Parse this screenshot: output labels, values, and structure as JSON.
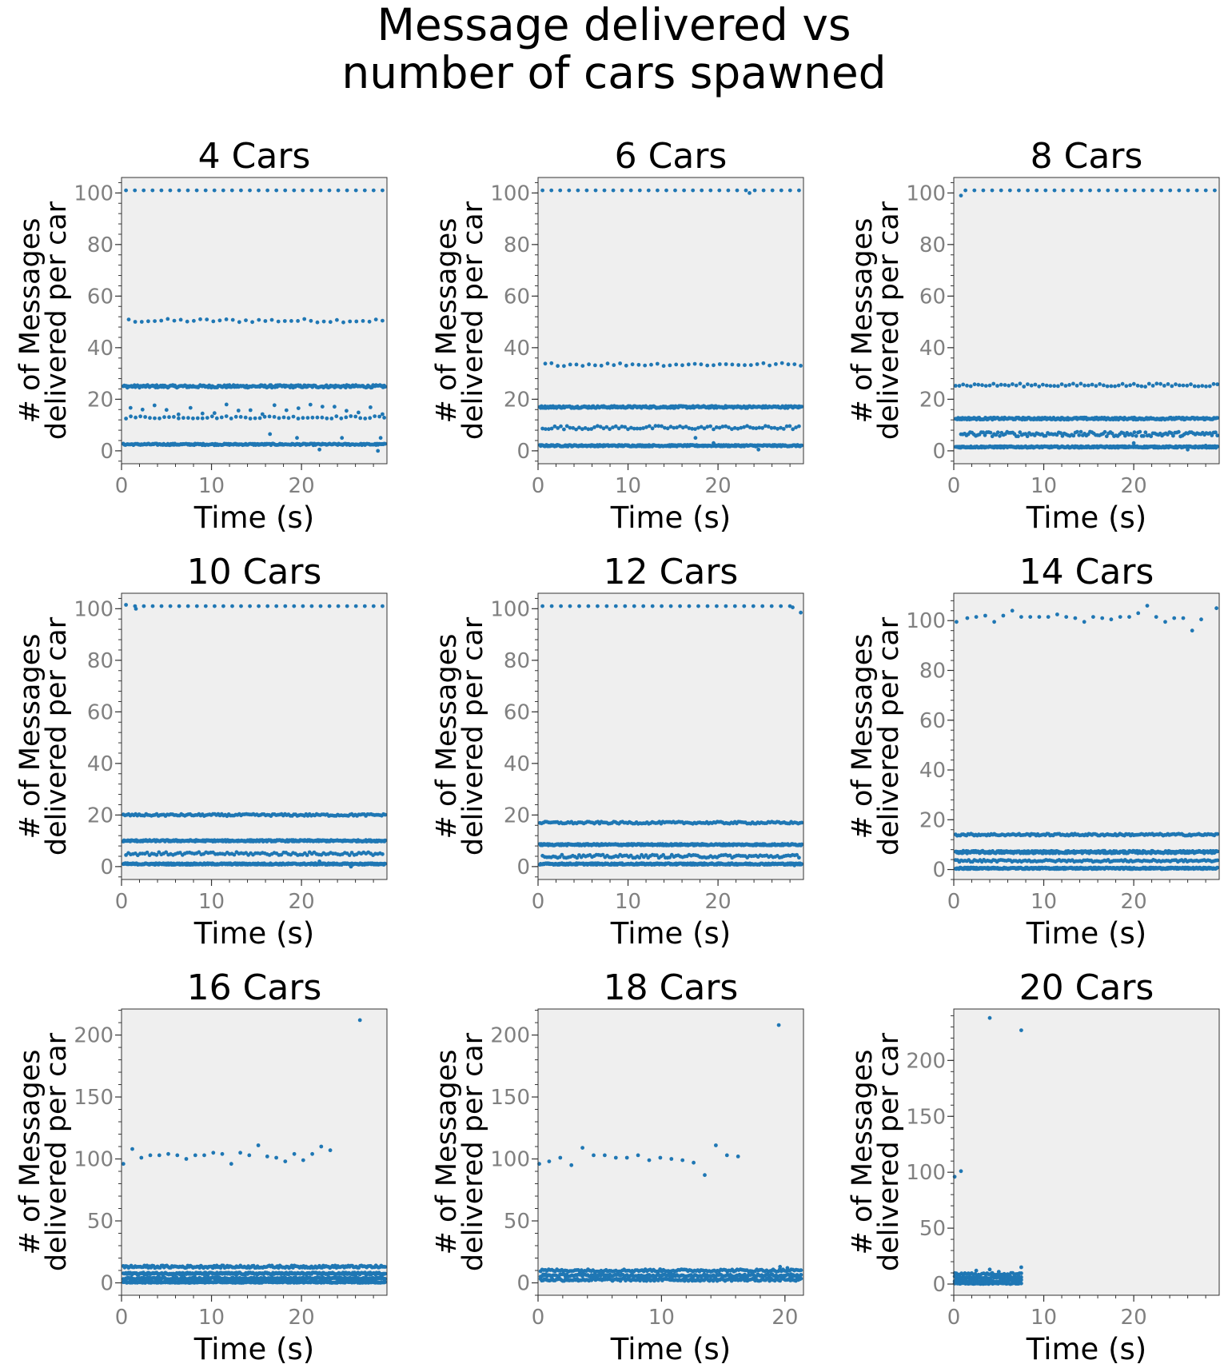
{
  "figure": {
    "title_lines": [
      "Message delivered vs",
      "number of cars spawned"
    ]
  },
  "colors": {
    "marker": "#1f77b4",
    "panel_bg": "#efefef",
    "tick_label": "#808080",
    "text": "#000000"
  },
  "chart_data": [
    {
      "type": "scatter",
      "title": "4 Cars",
      "xlabel": "Time (s)",
      "ylabel": [
        "# of Messages",
        "delivered per car"
      ],
      "xlim": [
        0,
        29.5
      ],
      "ylim": [
        -5,
        106
      ],
      "xticks": [
        0,
        10,
        20
      ],
      "yticks": [
        0,
        20,
        40,
        60,
        80,
        100
      ],
      "bands": [
        {
          "y": 101,
          "start": 0.5,
          "end": 29,
          "count": 30,
          "jitter": 0
        },
        {
          "y": 50.5,
          "start": 0.8,
          "end": 29,
          "count": 40,
          "jitter": 0.7
        },
        {
          "y": 25,
          "start": 0.2,
          "end": 29.3,
          "count": 260,
          "jitter": 0.5
        },
        {
          "y": 16,
          "start": 1,
          "end": 29,
          "count": 22,
          "jitter": 2
        },
        {
          "y": 13,
          "start": 0.5,
          "end": 29.2,
          "count": 55,
          "jitter": 0.5
        },
        {
          "y": 2.5,
          "start": 0.2,
          "end": 29.3,
          "count": 260,
          "jitter": 0.3
        }
      ],
      "points": [
        [
          16.5,
          6.5
        ],
        [
          19.5,
          5
        ],
        [
          22,
          0.5
        ],
        [
          24.5,
          5
        ],
        [
          28.5,
          0
        ],
        [
          28.8,
          5
        ]
      ]
    },
    {
      "type": "scatter",
      "title": "6 Cars",
      "xlabel": "Time (s)",
      "ylabel": [
        "# of Messages",
        "delivered per car"
      ],
      "xlim": [
        0,
        29.5
      ],
      "ylim": [
        -5,
        106
      ],
      "xticks": [
        0,
        10,
        20
      ],
      "yticks": [
        0,
        20,
        40,
        60,
        80,
        100
      ],
      "bands": [
        {
          "y": 101,
          "start": 0.5,
          "end": 29,
          "count": 30,
          "jitter": 0
        },
        {
          "y": 33.5,
          "start": 0.8,
          "end": 29.2,
          "count": 42,
          "jitter": 0.6
        },
        {
          "y": 17,
          "start": 0.2,
          "end": 29.3,
          "count": 300,
          "jitter": 0.4
        },
        {
          "y": 9,
          "start": 0.5,
          "end": 29,
          "count": 85,
          "jitter": 0.7
        },
        {
          "y": 2,
          "start": 0.2,
          "end": 29.3,
          "count": 320,
          "jitter": 0.3
        }
      ],
      "points": [
        [
          23.5,
          100
        ],
        [
          17.5,
          5
        ],
        [
          19.5,
          3
        ],
        [
          24.5,
          0.5
        ]
      ]
    },
    {
      "type": "scatter",
      "title": "8 Cars",
      "xlabel": "Time (s)",
      "ylabel": [
        "# of Messages",
        "delivered per car"
      ],
      "xlim": [
        0,
        29.5
      ],
      "ylim": [
        -5,
        106
      ],
      "xticks": [
        0,
        10,
        20
      ],
      "yticks": [
        0,
        20,
        40,
        60,
        80,
        100
      ],
      "bands": [
        {
          "y": 101,
          "start": 1.3,
          "end": 29,
          "count": 29,
          "jitter": 0
        },
        {
          "y": 25.5,
          "start": 0.2,
          "end": 29.3,
          "count": 70,
          "jitter": 0.6
        },
        {
          "y": 12.5,
          "start": 0.2,
          "end": 29.3,
          "count": 300,
          "jitter": 0.4
        },
        {
          "y": 6.5,
          "start": 0.8,
          "end": 29.3,
          "count": 140,
          "jitter": 0.9
        },
        {
          "y": 1.5,
          "start": 0.2,
          "end": 29.3,
          "count": 360,
          "jitter": 0.3
        }
      ],
      "points": [
        [
          0.8,
          99
        ],
        [
          20,
          3
        ],
        [
          26,
          0.5
        ],
        [
          28,
          2
        ]
      ]
    },
    {
      "type": "scatter",
      "title": "10 Cars",
      "xlabel": "Time (s)",
      "ylabel": [
        "# of Messages",
        "delivered per car"
      ],
      "xlim": [
        0,
        29.5
      ],
      "ylim": [
        -5,
        106
      ],
      "xticks": [
        0,
        10,
        20
      ],
      "yticks": [
        0,
        20,
        40,
        60,
        80,
        100
      ],
      "bands": [
        {
          "y": 101,
          "start": 1.5,
          "end": 29,
          "count": 29,
          "jitter": 0
        },
        {
          "y": 20,
          "start": 0.2,
          "end": 29.3,
          "count": 150,
          "jitter": 0.4
        },
        {
          "y": 10,
          "start": 0.2,
          "end": 29.3,
          "count": 340,
          "jitter": 0.3
        },
        {
          "y": 5,
          "start": 0.5,
          "end": 29,
          "count": 110,
          "jitter": 0.6
        },
        {
          "y": 1,
          "start": 0.2,
          "end": 29.3,
          "count": 380,
          "jitter": 0.3
        }
      ],
      "points": [
        [
          0.5,
          101.5
        ],
        [
          1.6,
          100
        ],
        [
          22,
          2
        ],
        [
          25.5,
          0
        ]
      ]
    },
    {
      "type": "scatter",
      "title": "12 Cars",
      "xlabel": "Time (s)",
      "ylabel": [
        "# of Messages",
        "delivered per car"
      ],
      "xlim": [
        0,
        29.5
      ],
      "ylim": [
        -5,
        106
      ],
      "xticks": [
        0,
        10,
        20
      ],
      "yticks": [
        0,
        20,
        40,
        60,
        80,
        100
      ],
      "bands": [
        {
          "y": 101,
          "start": 0.5,
          "end": 28,
          "count": 28,
          "jitter": 0
        },
        {
          "y": 17,
          "start": 0.2,
          "end": 29.3,
          "count": 150,
          "jitter": 0.4
        },
        {
          "y": 8.5,
          "start": 0.2,
          "end": 29.3,
          "count": 340,
          "jitter": 0.3
        },
        {
          "y": 4,
          "start": 0.5,
          "end": 29,
          "count": 120,
          "jitter": 0.6
        },
        {
          "y": 1,
          "start": 0.2,
          "end": 29.3,
          "count": 380,
          "jitter": 0.3
        }
      ],
      "points": [
        [
          28.3,
          100.5
        ],
        [
          29.2,
          98.5
        ],
        [
          28.5,
          0.5
        ]
      ]
    },
    {
      "type": "scatter",
      "title": "14 Cars",
      "xlabel": "Time (s)",
      "ylabel": [
        "# of Messages",
        "delivered per car"
      ],
      "xlim": [
        0,
        29.5
      ],
      "ylim": [
        -4,
        111
      ],
      "xticks": [
        0,
        10,
        20
      ],
      "yticks": [
        0,
        20,
        40,
        60,
        80,
        100
      ],
      "bands": [
        {
          "y": 14,
          "start": 0.2,
          "end": 29.3,
          "count": 170,
          "jitter": 0.4
        },
        {
          "y": 7,
          "start": 0.2,
          "end": 29.3,
          "count": 340,
          "jitter": 0.5
        },
        {
          "y": 3.5,
          "start": 0.2,
          "end": 29.3,
          "count": 140,
          "jitter": 0.4
        },
        {
          "y": 0.5,
          "start": 0.2,
          "end": 29.3,
          "count": 400,
          "jitter": 0.3
        }
      ],
      "points": [
        [
          0.3,
          99.5
        ],
        [
          1.5,
          101
        ],
        [
          2.5,
          101.5
        ],
        [
          3.5,
          102
        ],
        [
          4.5,
          99.5
        ],
        [
          5.5,
          102
        ],
        [
          6.5,
          104
        ],
        [
          7.5,
          101.5
        ],
        [
          8.5,
          101.5
        ],
        [
          9.5,
          101.5
        ],
        [
          10.5,
          101.5
        ],
        [
          11.5,
          102.5
        ],
        [
          12.5,
          101.5
        ],
        [
          13.5,
          101
        ],
        [
          14.5,
          99.5
        ],
        [
          15.5,
          101.5
        ],
        [
          16.5,
          101
        ],
        [
          17.5,
          100.5
        ],
        [
          18.5,
          101.5
        ],
        [
          19.5,
          101.5
        ],
        [
          20.5,
          103
        ],
        [
          21.5,
          106
        ],
        [
          22.5,
          101.5
        ],
        [
          23.5,
          99.5
        ],
        [
          24.5,
          101
        ],
        [
          25.5,
          101
        ],
        [
          26.5,
          96
        ],
        [
          27.5,
          100.5
        ],
        [
          29.2,
          105
        ]
      ]
    },
    {
      "type": "scatter",
      "title": "16 Cars",
      "xlabel": "Time (s)",
      "ylabel": [
        "# of Messages",
        "delivered per car"
      ],
      "xlim": [
        0,
        29.5
      ],
      "ylim": [
        -10,
        221
      ],
      "xticks": [
        0,
        10,
        20
      ],
      "yticks": [
        0,
        50,
        100,
        150,
        200
      ],
      "bands": [
        {
          "y": 13,
          "start": 0.2,
          "end": 29.3,
          "count": 200,
          "jitter": 1
        },
        {
          "y": 7.5,
          "start": 0.2,
          "end": 29.3,
          "count": 300,
          "jitter": 0.8
        },
        {
          "y": 3.5,
          "start": 0.2,
          "end": 29.3,
          "count": 300,
          "jitter": 0.8
        },
        {
          "y": 0.5,
          "start": 0.2,
          "end": 29.3,
          "count": 300,
          "jitter": 0.5
        }
      ],
      "points": [
        [
          0.2,
          96
        ],
        [
          1.2,
          108
        ],
        [
          2.2,
          101
        ],
        [
          3.2,
          103
        ],
        [
          4.2,
          103
        ],
        [
          5.2,
          104
        ],
        [
          6.2,
          103
        ],
        [
          7.2,
          100
        ],
        [
          8.2,
          103
        ],
        [
          9.2,
          103
        ],
        [
          10.2,
          105
        ],
        [
          11.2,
          104
        ],
        [
          12.2,
          96
        ],
        [
          13.2,
          105
        ],
        [
          14.2,
          103
        ],
        [
          15.2,
          111
        ],
        [
          16.2,
          102
        ],
        [
          17.2,
          101
        ],
        [
          18.2,
          98
        ],
        [
          19.2,
          104
        ],
        [
          20.2,
          99
        ],
        [
          21.2,
          104
        ],
        [
          22.2,
          110
        ],
        [
          23.2,
          107
        ],
        [
          26.5,
          212
        ]
      ]
    },
    {
      "type": "scatter",
      "title": "18 Cars",
      "xlabel": "Time (s)",
      "ylabel": [
        "# of Messages",
        "delivered per car"
      ],
      "xlim": [
        0,
        21.5
      ],
      "ylim": [
        -10,
        221
      ],
      "xticks": [
        0,
        10,
        20
      ],
      "yticks": [
        0,
        50,
        100,
        150,
        200
      ],
      "bands": [
        {
          "y": 10,
          "start": 0.2,
          "end": 21.3,
          "count": 160,
          "jitter": 1
        },
        {
          "y": 6,
          "start": 0.2,
          "end": 21.3,
          "count": 200,
          "jitter": 1
        },
        {
          "y": 2.5,
          "start": 0.2,
          "end": 21.3,
          "count": 200,
          "jitter": 1
        }
      ],
      "points": [
        [
          0.1,
          96
        ],
        [
          0.9,
          98
        ],
        [
          1.8,
          101
        ],
        [
          2.7,
          95
        ],
        [
          3.6,
          109
        ],
        [
          4.5,
          103
        ],
        [
          5.4,
          103
        ],
        [
          6.3,
          101
        ],
        [
          7.2,
          101
        ],
        [
          8.1,
          103
        ],
        [
          9.0,
          99
        ],
        [
          9.9,
          101
        ],
        [
          10.8,
          100
        ],
        [
          11.7,
          99
        ],
        [
          12.6,
          97
        ],
        [
          13.5,
          87
        ],
        [
          14.4,
          111
        ],
        [
          15.3,
          103
        ],
        [
          16.2,
          102
        ],
        [
          19.5,
          208
        ],
        [
          19.6,
          13
        ],
        [
          20.2,
          12
        ],
        [
          20.5,
          7
        ],
        [
          21.2,
          5
        ]
      ]
    },
    {
      "type": "scatter",
      "title": "20 Cars",
      "xlabel": "Time (s)",
      "ylabel": [
        "# of Messages",
        "delivered per car"
      ],
      "xlim": [
        0,
        29.5
      ],
      "ylim": [
        -10,
        246
      ],
      "xticks": [
        0,
        10,
        20
      ],
      "yticks": [
        0,
        50,
        100,
        150,
        200
      ],
      "bands": [
        {
          "y": 9,
          "start": 0.1,
          "end": 7.5,
          "count": 40,
          "jitter": 1
        },
        {
          "y": 6,
          "start": 0.1,
          "end": 7.5,
          "count": 50,
          "jitter": 1
        },
        {
          "y": 3,
          "start": 0.1,
          "end": 7.5,
          "count": 50,
          "jitter": 1
        },
        {
          "y": 0.5,
          "start": 0.1,
          "end": 7.5,
          "count": 50,
          "jitter": 0.5
        }
      ],
      "points": [
        [
          0.1,
          96
        ],
        [
          0.8,
          101
        ],
        [
          4.0,
          238
        ],
        [
          7.5,
          227
        ],
        [
          2.5,
          12
        ],
        [
          4.0,
          13
        ],
        [
          5.0,
          11
        ],
        [
          7.5,
          15
        ]
      ]
    }
  ]
}
